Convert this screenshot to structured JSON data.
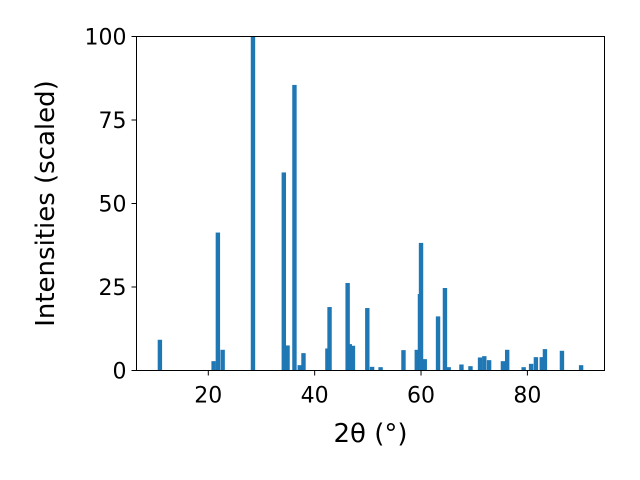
{
  "chart_data": {
    "type": "bar",
    "title": "",
    "xlabel": "2θ (°)",
    "ylabel": "Intensities (scaled)",
    "xlim": [
      6.5,
      94.5
    ],
    "ylim": [
      0,
      100
    ],
    "xticks": [
      20,
      40,
      60,
      80
    ],
    "yticks": [
      0,
      25,
      50,
      75,
      100
    ],
    "grid": false,
    "bar_color": "#1f77b4",
    "x": [
      10.9,
      21.0,
      21.8,
      22.7,
      28.4,
      34.2,
      34.9,
      36.2,
      37.2,
      37.9,
      42.4,
      42.8,
      46.2,
      46.6,
      47.2,
      49.9,
      50.8,
      52.4,
      56.7,
      59.2,
      59.8,
      60.0,
      60.7,
      63.2,
      64.5,
      65.2,
      67.6,
      69.3,
      71.1,
      71.9,
      72.8,
      75.4,
      76.2,
      79.3,
      80.7,
      81.6,
      82.7,
      83.3,
      86.5,
      90.1
    ],
    "values": [
      9.2,
      2.8,
      41.3,
      6.2,
      100,
      59.3,
      7.5,
      85.5,
      1.6,
      5.2,
      6.6,
      19.0,
      26.2,
      7.9,
      7.4,
      18.7,
      1.1,
      1.0,
      6.1,
      6.2,
      22.9,
      38.2,
      3.4,
      16.2,
      24.7,
      1.0,
      1.8,
      1.3,
      3.9,
      4.3,
      3.1,
      2.8,
      6.2,
      1.0,
      2.0,
      4.0,
      4.0,
      6.4,
      5.9,
      1.6
    ]
  }
}
